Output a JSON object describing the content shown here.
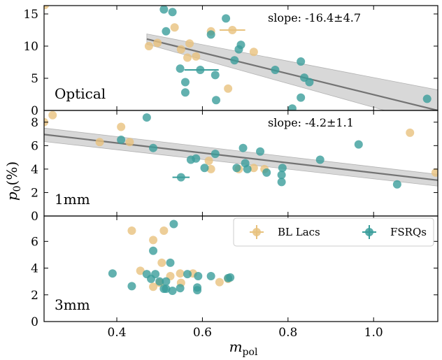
{
  "chart_data": {
    "type": "scatter",
    "x_axis": {
      "label_main": "m",
      "label_sub": "pol",
      "range": [
        0.23,
        1.15
      ],
      "ticks": [
        0.4,
        0.6,
        0.8,
        1.0
      ],
      "tick_labels": [
        "0.4",
        "0.6",
        "0.8",
        "1.0"
      ]
    },
    "y_axis": {
      "label_main": "p",
      "label_sub": "0",
      "label_tail": "(%)"
    },
    "colors": {
      "BL Lacs": "#e8c27e",
      "FSRQs": "#3b9e9b",
      "fit": "#737373"
    },
    "legend": {
      "position": "upper right of 3mm panel",
      "entries": [
        {
          "label": "BL Lacs",
          "color": "#e8c27e"
        },
        {
          "label": "FSRQs",
          "color": "#3b9e9b"
        }
      ]
    },
    "panels": [
      {
        "name": "Optical",
        "ylim": [
          0,
          16.3
        ],
        "yticks": [
          0,
          5,
          10,
          15
        ],
        "ytick_labels": [
          "0",
          "5",
          "10",
          "15"
        ],
        "annotation": "slope: -16.4±4.7",
        "fit": {
          "x": [
            0.47,
            1.15
          ],
          "y": [
            11.1,
            0.0
          ],
          "band_upper": [
            11.9,
            3.2
          ],
          "band_lower": [
            10.3,
            -2.3
          ]
        },
        "bl_lacs": [
          [
            0.232,
            16.4
          ],
          [
            0.475,
            10.0
          ],
          [
            0.495,
            10.5
          ],
          [
            0.535,
            12.9
          ],
          [
            0.55,
            9.5
          ],
          [
            0.565,
            8.2
          ],
          [
            0.57,
            10.4
          ],
          [
            0.585,
            8.4
          ],
          [
            0.62,
            12.3
          ],
          [
            0.67,
            12.5
          ],
          [
            0.66,
            3.4
          ],
          [
            0.72,
            9.1
          ]
        ],
        "bl_lacs_xerr": [
          [
            0.67,
            0.03
          ]
        ],
        "fsrqs": [
          [
            0.51,
            15.7
          ],
          [
            0.53,
            15.3
          ],
          [
            0.515,
            12.3
          ],
          [
            0.548,
            6.5
          ],
          [
            0.56,
            4.4
          ],
          [
            0.56,
            2.8
          ],
          [
            0.595,
            6.3
          ],
          [
            0.63,
            5.5
          ],
          [
            0.655,
            14.3
          ],
          [
            0.62,
            11.8
          ],
          [
            0.632,
            1.6
          ],
          [
            0.685,
            9.5
          ],
          [
            0.69,
            10.2
          ],
          [
            0.675,
            7.8
          ],
          [
            0.77,
            6.3
          ],
          [
            0.81,
            0.3
          ],
          [
            0.83,
            7.6
          ],
          [
            0.838,
            5.1
          ],
          [
            0.85,
            4.4
          ],
          [
            0.83,
            2.0
          ],
          [
            1.125,
            1.8
          ]
        ],
        "fsrqs_xerr": [
          [
            0.598,
            0.04
          ]
        ]
      },
      {
        "name": "1mm",
        "ylim": [
          0,
          9.0
        ],
        "yticks": [
          0,
          2,
          4,
          6,
          8
        ],
        "ytick_labels": [
          "0",
          "2",
          "4",
          "6",
          "8"
        ],
        "annotation": "slope: -4.2±1.1",
        "fit": {
          "x": [
            0.23,
            1.15
          ],
          "y": [
            6.95,
            3.05
          ],
          "band_upper": [
            7.5,
            3.55
          ],
          "band_lower": [
            6.35,
            2.55
          ]
        },
        "bl_lacs": [
          [
            0.23,
            8.0
          ],
          [
            0.25,
            8.6
          ],
          [
            0.36,
            6.3
          ],
          [
            0.41,
            7.6
          ],
          [
            0.43,
            6.3
          ],
          [
            0.615,
            4.7
          ],
          [
            0.62,
            4.0
          ],
          [
            0.685,
            4.0
          ],
          [
            0.72,
            4.1
          ],
          [
            0.745,
            4.0
          ],
          [
            1.085,
            7.1
          ],
          [
            1.145,
            3.7
          ]
        ],
        "fsrqs": [
          [
            0.41,
            6.5
          ],
          [
            0.47,
            8.4
          ],
          [
            0.485,
            5.8
          ],
          [
            0.573,
            4.8
          ],
          [
            0.585,
            4.9
          ],
          [
            0.605,
            4.1
          ],
          [
            0.63,
            5.3
          ],
          [
            0.55,
            3.3
          ],
          [
            0.68,
            4.1
          ],
          [
            0.695,
            5.8
          ],
          [
            0.7,
            4.5
          ],
          [
            0.705,
            4.0
          ],
          [
            0.735,
            5.5
          ],
          [
            0.75,
            3.7
          ],
          [
            0.785,
            3.5
          ],
          [
            0.787,
            4.1
          ],
          [
            0.785,
            2.9
          ],
          [
            0.875,
            4.8
          ],
          [
            0.965,
            6.1
          ],
          [
            1.055,
            2.7
          ]
        ],
        "fsrqs_xerr": [
          [
            0.55,
            0.02
          ]
        ]
      },
      {
        "name": "3mm",
        "ylim": [
          0,
          7.9
        ],
        "yticks": [
          0,
          2,
          4,
          6
        ],
        "ytick_labels": [
          "0",
          "2",
          "4",
          "6"
        ],
        "bl_lacs": [
          [
            0.435,
            6.8
          ],
          [
            0.485,
            6.1
          ],
          [
            0.51,
            6.8
          ],
          [
            0.455,
            3.8
          ],
          [
            0.505,
            4.4
          ],
          [
            0.5,
            2.9
          ],
          [
            0.485,
            2.6
          ],
          [
            0.525,
            3.4
          ],
          [
            0.548,
            3.6
          ],
          [
            0.55,
            2.9
          ],
          [
            0.578,
            3.6
          ],
          [
            0.64,
            2.95
          ],
          [
            0.66,
            3.2
          ]
        ],
        "fsrqs": [
          [
            0.39,
            3.6
          ],
          [
            0.435,
            2.65
          ],
          [
            0.47,
            3.55
          ],
          [
            0.48,
            3.2
          ],
          [
            0.485,
            5.3
          ],
          [
            0.49,
            3.55
          ],
          [
            0.5,
            3.0
          ],
          [
            0.51,
            2.45
          ],
          [
            0.515,
            3.0
          ],
          [
            0.525,
            4.4
          ],
          [
            0.53,
            2.3
          ],
          [
            0.533,
            7.3
          ],
          [
            0.515,
            2.45
          ],
          [
            0.548,
            2.5
          ],
          [
            0.565,
            3.55
          ],
          [
            0.588,
            2.55
          ],
          [
            0.588,
            2.35
          ],
          [
            0.59,
            3.4
          ],
          [
            0.62,
            3.4
          ],
          [
            0.66,
            3.25
          ],
          [
            0.665,
            3.3
          ]
        ]
      }
    ]
  }
}
